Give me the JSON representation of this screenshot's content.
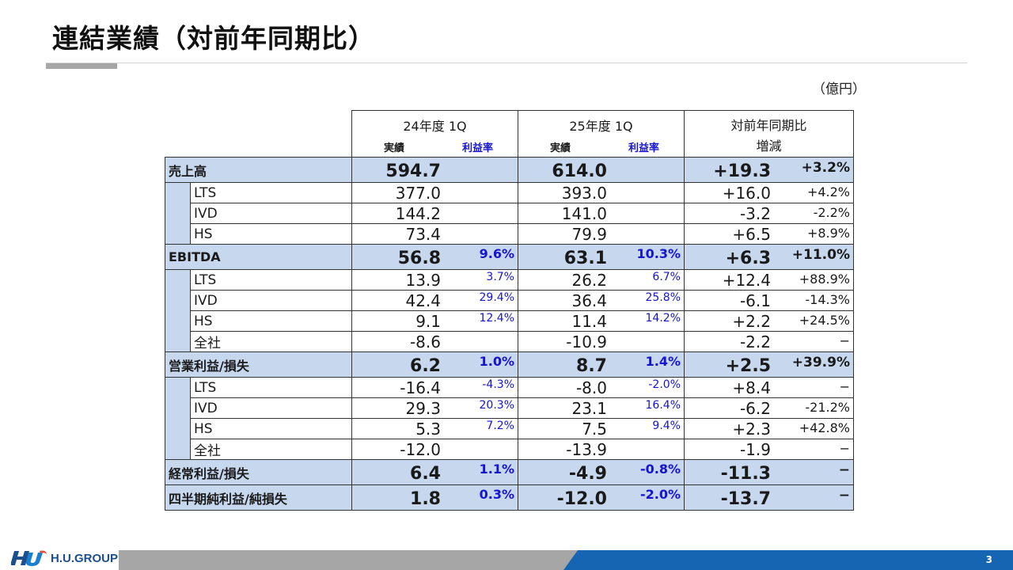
{
  "title": "連結業績（対前年同期比）",
  "unit": "（億円）",
  "header": {
    "period1": "24年度 1Q",
    "period2": "25年度 1Q",
    "compare_line1": "対前年同期比",
    "compare_line2": "増減",
    "actual": "実績",
    "margin": "利益率"
  },
  "rows": [
    {
      "type": "main",
      "label": "売上高",
      "v1": "594.7",
      "m1": "",
      "v2": "614.0",
      "m2": "",
      "d": "+19.3",
      "dp": "+3.2%"
    },
    {
      "type": "sub",
      "label": "LTS",
      "v1": "377.0",
      "m1": "",
      "v2": "393.0",
      "m2": "",
      "d": "+16.0",
      "dp": "+4.2%"
    },
    {
      "type": "sub",
      "label": "IVD",
      "v1": "144.2",
      "m1": "",
      "v2": "141.0",
      "m2": "",
      "d": "-3.2",
      "dp": "-2.2%"
    },
    {
      "type": "sub",
      "label": "HS",
      "v1": "73.4",
      "m1": "",
      "v2": "79.9",
      "m2": "",
      "d": "+6.5",
      "dp": "+8.9%"
    },
    {
      "type": "main",
      "label": "EBITDA",
      "v1": "56.8",
      "m1": "9.6%",
      "v2": "63.1",
      "m2": "10.3%",
      "d": "+6.3",
      "dp": "+11.0%"
    },
    {
      "type": "sub",
      "label": "LTS",
      "v1": "13.9",
      "m1": "3.7%",
      "v2": "26.2",
      "m2": "6.7%",
      "d": "+12.4",
      "dp": "+88.9%"
    },
    {
      "type": "sub",
      "label": "IVD",
      "v1": "42.4",
      "m1": "29.4%",
      "v2": "36.4",
      "m2": "25.8%",
      "d": "-6.1",
      "dp": "-14.3%"
    },
    {
      "type": "sub",
      "label": "HS",
      "v1": "9.1",
      "m1": "12.4%",
      "v2": "11.4",
      "m2": "14.2%",
      "d": "+2.2",
      "dp": "+24.5%"
    },
    {
      "type": "sub",
      "label": "全社",
      "v1": "-8.6",
      "m1": "",
      "v2": "-10.9",
      "m2": "",
      "d": "-2.2",
      "dp": "−"
    },
    {
      "type": "main",
      "label": "営業利益/損失",
      "v1": "6.2",
      "m1": "1.0%",
      "v2": "8.7",
      "m2": "1.4%",
      "d": "+2.5",
      "dp": "+39.9%"
    },
    {
      "type": "sub",
      "label": "LTS",
      "v1": "-16.4",
      "m1": "-4.3%",
      "v2": "-8.0",
      "m2": "-2.0%",
      "d": "+8.4",
      "dp": "−"
    },
    {
      "type": "sub",
      "label": "IVD",
      "v1": "29.3",
      "m1": "20.3%",
      "v2": "23.1",
      "m2": "16.4%",
      "d": "-6.2",
      "dp": "-21.2%"
    },
    {
      "type": "sub",
      "label": "HS",
      "v1": "5.3",
      "m1": "7.2%",
      "v2": "7.5",
      "m2": "9.4%",
      "d": "+2.3",
      "dp": "+42.8%"
    },
    {
      "type": "sub",
      "label": "全社",
      "v1": "-12.0",
      "m1": "",
      "v2": "-13.9",
      "m2": "",
      "d": "-1.9",
      "dp": "−"
    },
    {
      "type": "main",
      "label": "経常利益/損失",
      "v1": "6.4",
      "m1": "1.1%",
      "v2": "-4.9",
      "m2": "-0.8%",
      "d": "-11.3",
      "dp": "−"
    },
    {
      "type": "main",
      "label": "四半期純利益/純損失",
      "v1": "1.8",
      "m1": "0.3%",
      "v2": "-12.0",
      "m2": "-2.0%",
      "d": "-13.7",
      "dp": "−"
    }
  ],
  "footer": {
    "logo_text": "H.U.GROUP",
    "page_number": "3"
  }
}
